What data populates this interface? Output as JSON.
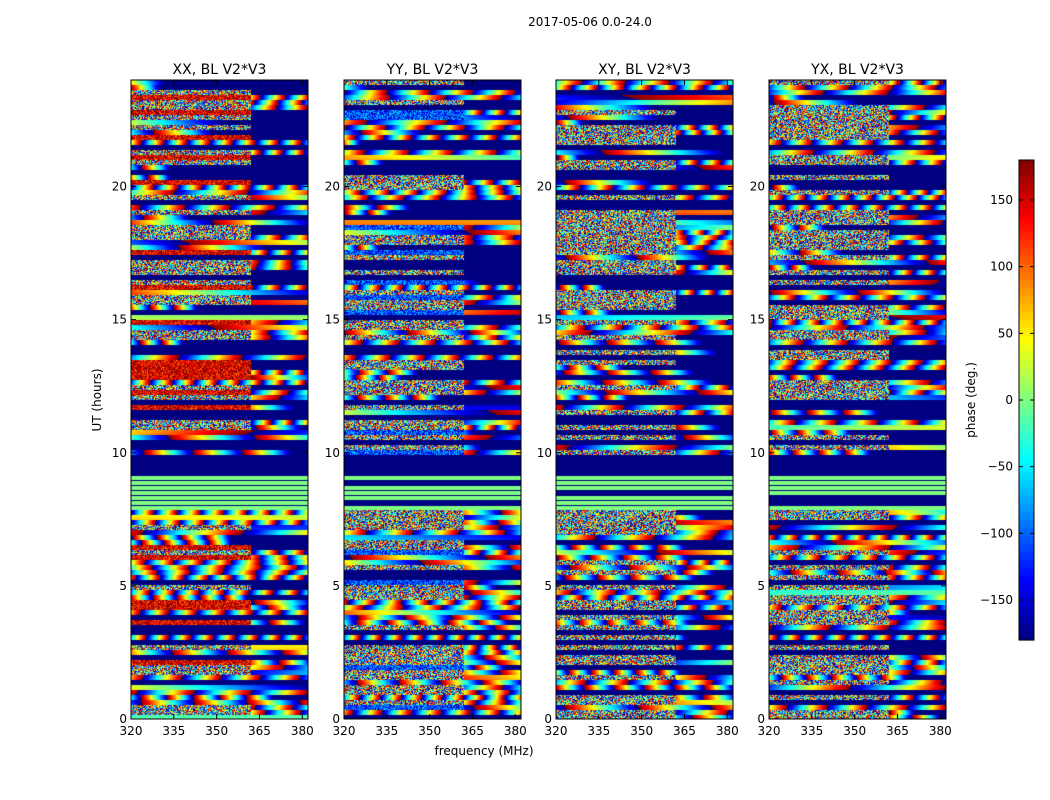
{
  "chart_data": {
    "type": "heatmap",
    "suptitle": "2017-05-06 0.0-24.0",
    "xlabel": "frequency (MHz)",
    "ylabel": "UT (hours)",
    "xlim": [
      320,
      382
    ],
    "ylim": [
      0,
      24
    ],
    "xticks": [
      320,
      335,
      350,
      365,
      380
    ],
    "yticks": [
      0,
      5,
      10,
      15,
      20
    ],
    "panels": [
      {
        "title": "XX, BL V2*V3"
      },
      {
        "title": "YY, BL V2*V3"
      },
      {
        "title": "XY, BL V2*V3"
      },
      {
        "title": "YX, BL V2*V3"
      }
    ],
    "colorbar": {
      "label": "phase (deg.)",
      "range": [
        -180,
        180
      ],
      "ticks": [
        -150,
        -100,
        -50,
        0,
        50,
        100,
        150
      ],
      "tick_labels": [
        "−150",
        "−100",
        "−50",
        "0",
        "50",
        "100",
        "150"
      ],
      "colormap": "jet"
    },
    "flagged_ut_ranges": [
      [
        0.4,
        0.5
      ],
      [
        1.5,
        1.6
      ],
      [
        2.9,
        3.0
      ],
      [
        3.3,
        3.4
      ],
      [
        4.9,
        5.0
      ],
      [
        7.5,
        7.6
      ],
      [
        9.3,
        9.4
      ],
      [
        9.5,
        10.0
      ],
      [
        10.4,
        10.5
      ],
      [
        11.3,
        11.5
      ],
      [
        11.8,
        12.0
      ],
      [
        14.0,
        14.1
      ],
      [
        16.6,
        16.7
      ],
      [
        18.2,
        18.3
      ],
      [
        19.4,
        19.5
      ],
      [
        20.6,
        20.7
      ],
      [
        21.5,
        21.6
      ],
      [
        22.0,
        22.1
      ]
    ],
    "constant_phase_ut_ranges": [
      [
        8.0,
        9.3
      ]
    ]
  }
}
